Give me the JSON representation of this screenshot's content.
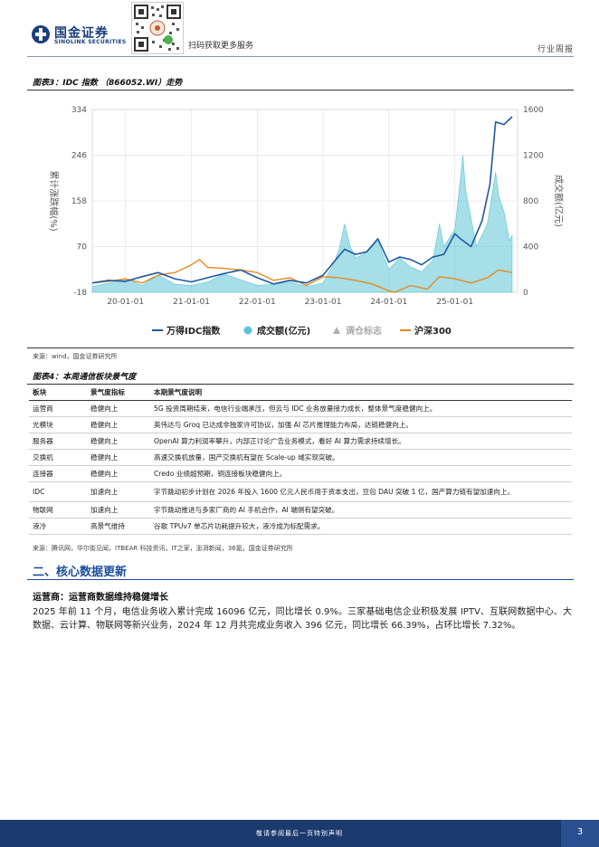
{
  "header": {
    "logo_cn": "国金证券",
    "logo_en": "SINOLINK SECURITIES",
    "scan_text": "扫码获取更多服务",
    "section_tag": "行业周报"
  },
  "figure3": {
    "title": "图表3：IDC 指数 （866052.WI）走势",
    "source": "来源：wind，国金证券研究所"
  },
  "chart_data": {
    "type": "line",
    "ylabel_left": "累计涨跌幅(%)",
    "ylabel_right": "成交额(亿元)",
    "left_ticks": [
      "334",
      "246",
      "158",
      "70",
      "-18"
    ],
    "right_ticks": [
      "1600",
      "1200",
      "800",
      "400",
      "0"
    ],
    "ylim_left": [
      -18,
      334
    ],
    "ylim_right": [
      0,
      1600
    ],
    "x_ticks": [
      "20-01-01",
      "21-01-01",
      "22-01-01",
      "23-01-01",
      "24-01-01",
      "25-01-01"
    ],
    "legend": [
      "万得IDC指数",
      "成交额(亿元)",
      "调仓标志",
      "沪深300"
    ],
    "legend_position": "bottom",
    "colors": {
      "idc": "#1f5aa0",
      "volume": "#5cc4d6",
      "hs300": "#e8891e",
      "marker": "#b0b0b0"
    },
    "series": [
      {
        "name": "万得IDC指数",
        "axis": "left",
        "x": [
          "2019-07-01",
          "2019-10-01",
          "2020-01-01",
          "2020-04-01",
          "2020-07-01",
          "2020-10-01",
          "2021-01-01",
          "2021-04-01",
          "2021-07-01",
          "2021-10-01",
          "2022-01-01",
          "2022-04-01",
          "2022-07-01",
          "2022-10-01",
          "2023-01-01",
          "2023-03-01",
          "2023-05-01",
          "2023-07-01",
          "2023-09-01",
          "2023-11-01",
          "2024-01-01",
          "2024-03-01",
          "2024-05-01",
          "2024-07-01",
          "2024-09-01",
          "2024-11-01",
          "2025-01-01",
          "2025-02-01",
          "2025-04-01",
          "2025-06-01",
          "2025-07-15",
          "2025-08-15",
          "2025-10-01",
          "2025-11-15"
        ],
        "y": [
          0,
          5,
          3,
          12,
          20,
          8,
          2,
          10,
          18,
          25,
          10,
          -2,
          5,
          0,
          15,
          40,
          65,
          55,
          60,
          85,
          40,
          50,
          45,
          35,
          50,
          55,
          95,
          85,
          70,
          120,
          190,
          310,
          305,
          320
        ]
      },
      {
        "name": "沪深300",
        "axis": "left",
        "x": [
          "2019-07-01",
          "2019-10-01",
          "2020-01-01",
          "2020-04-01",
          "2020-07-01",
          "2020-10-01",
          "2021-01-01",
          "2021-02-15",
          "2021-04-01",
          "2021-07-01",
          "2021-10-01",
          "2022-01-01",
          "2022-04-01",
          "2022-07-01",
          "2022-10-01",
          "2023-01-01",
          "2023-04-01",
          "2023-07-01",
          "2023-10-01",
          "2024-01-01",
          "2024-02-01",
          "2024-05-01",
          "2024-08-01",
          "2024-10-08",
          "2025-01-01",
          "2025-04-01",
          "2025-07-01",
          "2025-09-01",
          "2025-11-15"
        ],
        "y": [
          0,
          3,
          8,
          0,
          15,
          20,
          35,
          45,
          30,
          28,
          25,
          20,
          5,
          10,
          -5,
          12,
          10,
          5,
          -2,
          -15,
          -18,
          -5,
          -12,
          12,
          8,
          0,
          10,
          25,
          20
        ]
      },
      {
        "name": "成交额(亿元)",
        "axis": "right",
        "x": [
          "2019-07-01",
          "2019-10-01",
          "2020-01-01",
          "2020-04-01",
          "2020-07-01",
          "2020-10-01",
          "2021-01-01",
          "2021-04-01",
          "2021-07-01",
          "2021-10-01",
          "2022-01-01",
          "2022-04-01",
          "2022-07-01",
          "2022-10-01",
          "2023-01-01",
          "2023-03-01",
          "2023-04-01",
          "2023-05-01",
          "2023-06-01",
          "2023-07-01",
          "2023-09-01",
          "2023-11-01",
          "2024-01-01",
          "2024-03-01",
          "2024-05-01",
          "2024-07-01",
          "2024-09-01",
          "2024-10-08",
          "2024-11-01",
          "2025-01-01",
          "2025-02-15",
          "2025-03-01",
          "2025-05-01",
          "2025-07-01",
          "2025-08-15",
          "2025-09-01",
          "2025-10-01",
          "2025-11-01",
          "2025-11-15"
        ],
        "y": [
          50,
          80,
          120,
          60,
          150,
          70,
          60,
          90,
          160,
          110,
          60,
          70,
          90,
          50,
          80,
          250,
          380,
          600,
          400,
          300,
          350,
          450,
          200,
          300,
          220,
          180,
          280,
          600,
          400,
          550,
          1200,
          900,
          400,
          600,
          1050,
          850,
          700,
          450,
          500
        ]
      }
    ]
  },
  "figure4": {
    "title": "图表4：本周通信板块景气度",
    "source": "来源：腾讯网，华尔街见闻，ITBEAR 科技资讯，IT之家，澎湃新闻，36氪，国金证券研究所",
    "headers": [
      "板块",
      "景气度指标",
      "本期景气度说明"
    ],
    "rows": [
      [
        "运营商",
        "稳健向上",
        "5G 投资周期结束，电信行业端承压，但云与 IDC 业务放量接力成长，整体景气度稳健向上。"
      ],
      [
        "光模块",
        "稳健向上",
        "英伟达与 Groq 已达成非独家许可协议，加强 AI 芯片推理能力布局，达链稳健向上。"
      ],
      [
        "服务器",
        "稳健向上",
        "OpenAI 算力利润率攀升，内部正讨论广告业务模式，看好 AI 算力需求持续增长。"
      ],
      [
        "交换机",
        "稳健向上",
        "高速交换机放量，国产交换机有望在 Scale-up 域实现突破。"
      ],
      [
        "连接器",
        "稳健向上",
        "Credo 业绩超预期，铜连接板块稳健向上。"
      ],
      [
        "IDC",
        "加速向上",
        "字节跳动初步计划在 2026 年投入 1600 亿元人民币用于资本支出，豆包 DAU 突破 1 亿，国产算力链有望加速向上。"
      ],
      [
        "物联网",
        "加速向上",
        "宇节跳动推进与多家厂商的 AI 手机合作，AI 端侧有望突破。"
      ],
      [
        "液冷",
        "高景气维持",
        "谷歌 TPUv7 单芯片功耗提升较大，液冷成为标配需求。"
      ]
    ]
  },
  "section": {
    "title": "二、核心数据更新",
    "subtitle": "运营商：运营商数据维持稳健增长",
    "paragraph": "2025 年前 11 个月，电信业务收入累计完成 16096 亿元，同比增长 0.9%。三家基础电信企业积极发展 IPTV、互联网数据中心、大数据、云计算、物联网等新兴业务，2024 年 12 月共完成业务收入 396 亿元，同比增长 66.39%，占环比增长 7.32%。"
  },
  "footer": {
    "text": "敬请参阅最后一页特别声明",
    "page": "3"
  }
}
